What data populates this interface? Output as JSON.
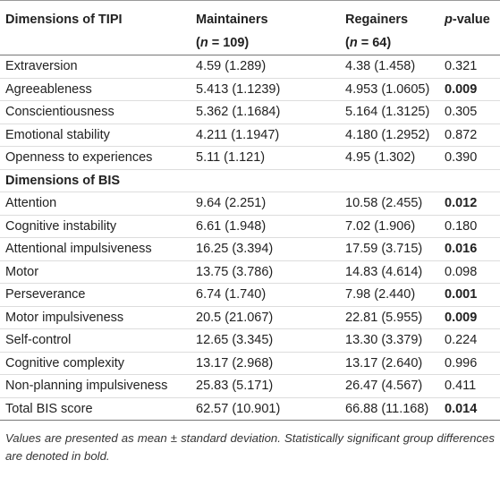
{
  "table": {
    "header": [
      {
        "lines": [
          [
            "Dimensions of TIPI"
          ]
        ]
      },
      {
        "lines": [
          [
            "Maintainers"
          ],
          [
            "(",
            "n",
            " = 109)"
          ]
        ]
      },
      {
        "lines": [
          [
            "Regainers"
          ],
          [
            "(",
            "n",
            " = 64)"
          ]
        ]
      },
      {
        "lines": [
          [
            "p",
            "-value"
          ]
        ],
        "italic_first": true
      }
    ],
    "rows": [
      {
        "cells": [
          "Extraversion",
          "4.59 (1.289)",
          "4.38 (1.458)",
          "0.321"
        ],
        "bold": false
      },
      {
        "cells": [
          "Agreeableness",
          "5.413 (1.1239)",
          "4.953 (1.0605)",
          "0.009"
        ],
        "bold": true
      },
      {
        "cells": [
          "Conscientiousness",
          "5.362 (1.1684)",
          "5.164 (1.3125)",
          "0.305"
        ],
        "bold": false
      },
      {
        "cells": [
          "Emotional stability",
          "4.211 (1.1947)",
          "4.180 (1.2952)",
          "0.872"
        ],
        "bold": false
      },
      {
        "cells": [
          "Openness to experiences",
          "5.11 (1.121)",
          "4.95 (1.302)",
          "0.390"
        ],
        "bold": false
      },
      {
        "section": "Dimensions of BIS"
      },
      {
        "cells": [
          "Attention",
          "9.64 (2.251)",
          "10.58 (2.455)",
          "0.012"
        ],
        "bold": true
      },
      {
        "cells": [
          "Cognitive instability",
          "6.61 (1.948)",
          "7.02 (1.906)",
          "0.180"
        ],
        "bold": false
      },
      {
        "cells": [
          "Attentional impulsiveness",
          "16.25 (3.394)",
          "17.59 (3.715)",
          "0.016"
        ],
        "bold": true
      },
      {
        "cells": [
          "Motor",
          "13.75 (3.786)",
          "14.83 (4.614)",
          "0.098"
        ],
        "bold": false
      },
      {
        "cells": [
          "Perseverance",
          "6.74 (1.740)",
          "7.98 (2.440)",
          "0.001"
        ],
        "bold": true
      },
      {
        "cells": [
          "Motor impulsiveness",
          "20.5 (21.067)",
          "22.81 (5.955)",
          "0.009"
        ],
        "bold": true
      },
      {
        "cells": [
          "Self-control",
          "12.65 (3.345)",
          "13.30 (3.379)",
          "0.224"
        ],
        "bold": false
      },
      {
        "cells": [
          "Cognitive complexity",
          "13.17 (2.968)",
          "13.17 (2.640)",
          "0.996"
        ],
        "bold": false
      },
      {
        "cells": [
          "Non-planning impulsiveness",
          "25.83 (5.171)",
          "26.47 (4.567)",
          "0.411"
        ],
        "bold": false
      },
      {
        "cells": [
          "Total BIS score",
          "62.57 (10.901)",
          "66.88 (11.168)",
          "0.014"
        ],
        "bold": true
      }
    ]
  },
  "footnote": "Values are presented as mean ± standard deviation. Statistically significant group differences are denoted in bold."
}
